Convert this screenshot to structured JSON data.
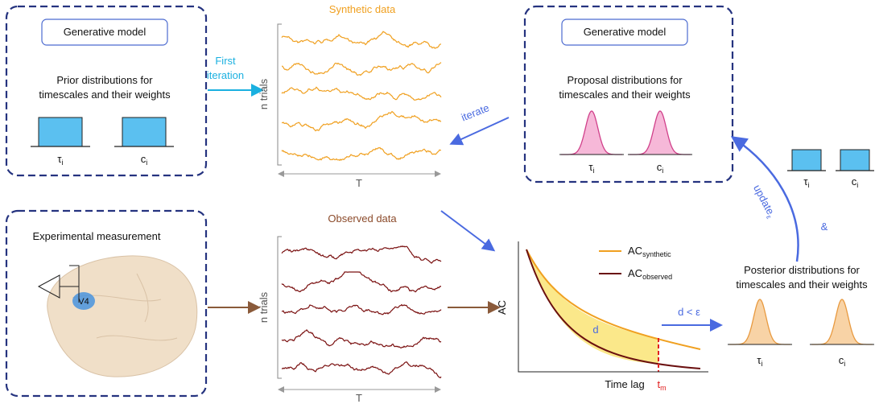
{
  "prior_box": {
    "button": "Generative model",
    "caption": [
      "Prior distributions for",
      "timescales and their weights"
    ],
    "param_labels": [
      {
        "symbol": "τ",
        "sub": "i"
      },
      {
        "symbol": "c",
        "sub": "i"
      }
    ]
  },
  "first_iteration": [
    "First",
    "iteration"
  ],
  "synthetic": {
    "title": "Synthetic data",
    "y_label": "n trials",
    "x_label": "T"
  },
  "iterate": "iterate",
  "proposal_box": {
    "button": "Generative model",
    "caption": [
      "Proposal distributions for",
      "timescales and their weights"
    ],
    "param_labels": [
      {
        "symbol": "τ",
        "sub": "i"
      },
      {
        "symbol": "c",
        "sub": "i"
      }
    ]
  },
  "measurement_box": {
    "title": "Experimental measurement",
    "area": "V4"
  },
  "observed": {
    "title": "Observed data",
    "y_label": "n trials",
    "x_label": "T"
  },
  "ac_plot": {
    "y_label": "AC",
    "x_label": "Time lag",
    "legend": [
      {
        "symbol": "AC",
        "sub": "synthetic"
      },
      {
        "symbol": "AC",
        "sub": "observed"
      }
    ],
    "area_label": "d",
    "cutoff": {
      "symbol": "t",
      "sub": "m"
    }
  },
  "accept": "d < ε",
  "update": {
    "text": "update",
    "sub": "ε"
  },
  "and": "&",
  "small_param_labels": [
    {
      "symbol": "τ",
      "sub": "i"
    },
    {
      "symbol": "c",
      "sub": "i"
    }
  ],
  "posterior": {
    "caption": [
      "Posterior distributions for",
      "timescales and their weights"
    ],
    "param_labels": [
      {
        "symbol": "τ",
        "sub": "i"
      },
      {
        "symbol": "c",
        "sub": "i"
      }
    ]
  }
}
